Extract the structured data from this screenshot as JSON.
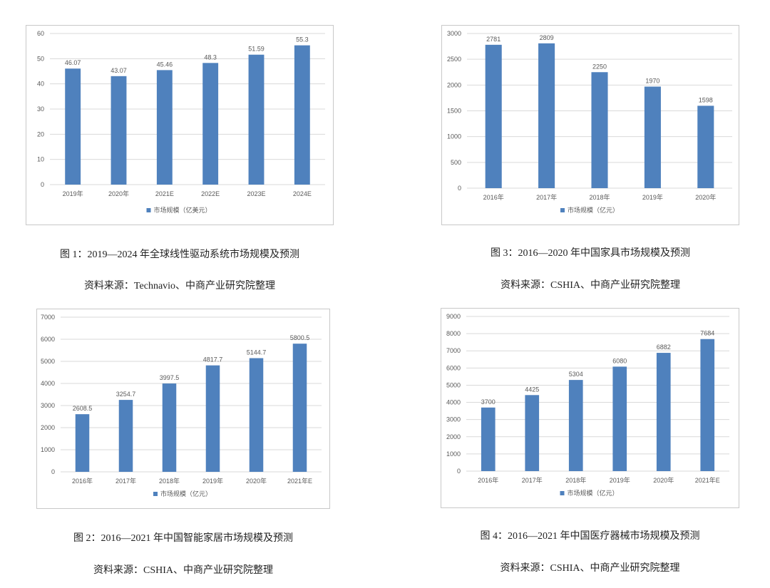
{
  "colors": {
    "bar": "#4f81bd",
    "grid": "#d9d9d9",
    "border": "#c8c8c8",
    "text": "#595959"
  },
  "chart_data": [
    {
      "type": "bar",
      "categories": [
        "2019年",
        "2020年",
        "2021E",
        "2022E",
        "2023E",
        "2024E"
      ],
      "series": [
        {
          "name": "市场规模（亿美元）",
          "values": [
            46.07,
            43.07,
            45.46,
            48.3,
            51.59,
            55.3
          ]
        }
      ],
      "value_labels": [
        "46.07",
        "43.07",
        "45.46",
        "48.3",
        "51.59",
        "55.3"
      ],
      "yticks": [
        0,
        10,
        20,
        30,
        40,
        50,
        60
      ],
      "ylim": [
        0,
        60
      ],
      "grid": true,
      "legend": "bottom",
      "caption": "图 1：2019—2024 年全球线性驱动系统市场规模及预测",
      "source": "资料来源：Technavio、中商产业研究院整理"
    },
    {
      "type": "bar",
      "categories": [
        "2016年",
        "2017年",
        "2018年",
        "2019年",
        "2020年"
      ],
      "series": [
        {
          "name": "市场规模（亿元）",
          "values": [
            2781,
            2809,
            2250,
            1970,
            1598
          ]
        }
      ],
      "value_labels": [
        "2781",
        "2809",
        "2250",
        "1970",
        "1598"
      ],
      "yticks": [
        0,
        500,
        1000,
        1500,
        2000,
        2500,
        3000
      ],
      "ylim": [
        0,
        3000
      ],
      "grid": true,
      "legend": "bottom",
      "caption": "图 3：2016—2020 年中国家具市场规模及预测",
      "source": "资料来源：CSHIA、中商产业研究院整理"
    },
    {
      "type": "bar",
      "categories": [
        "2016年",
        "2017年",
        "2018年",
        "2019年",
        "2020年",
        "2021年E"
      ],
      "series": [
        {
          "name": "市场规模（亿元）",
          "values": [
            2608.5,
            3254.7,
            3997.5,
            4817.7,
            5144.7,
            5800.5
          ]
        }
      ],
      "value_labels": [
        "2608.5",
        "3254.7",
        "3997.5",
        "4817.7",
        "5144.7",
        "5800.5"
      ],
      "yticks": [
        0,
        1000,
        2000,
        3000,
        4000,
        5000,
        6000,
        7000
      ],
      "ylim": [
        0,
        7000
      ],
      "grid": true,
      "legend": "bottom",
      "caption": "图 2：2016—2021 年中国智能家居市场规模及预测",
      "source": "资料来源：CSHIA、中商产业研究院整理"
    },
    {
      "type": "bar",
      "categories": [
        "2016年",
        "2017年",
        "2018年",
        "2019年",
        "2020年",
        "2021年E"
      ],
      "series": [
        {
          "name": "市场规模（亿元）",
          "values": [
            3700,
            4425,
            5304,
            6080,
            6882,
            7684
          ]
        }
      ],
      "value_labels": [
        "3700",
        "4425",
        "5304",
        "6080",
        "6882",
        "7684"
      ],
      "yticks": [
        0,
        1000,
        2000,
        3000,
        4000,
        5000,
        6000,
        7000,
        8000,
        9000
      ],
      "ylim": [
        0,
        9000
      ],
      "grid": true,
      "legend": "bottom",
      "caption": "图 4：2016—2021 年中国医疗器械市场规模及预测",
      "source": "资料来源：CSHIA、中商产业研究院整理"
    }
  ]
}
